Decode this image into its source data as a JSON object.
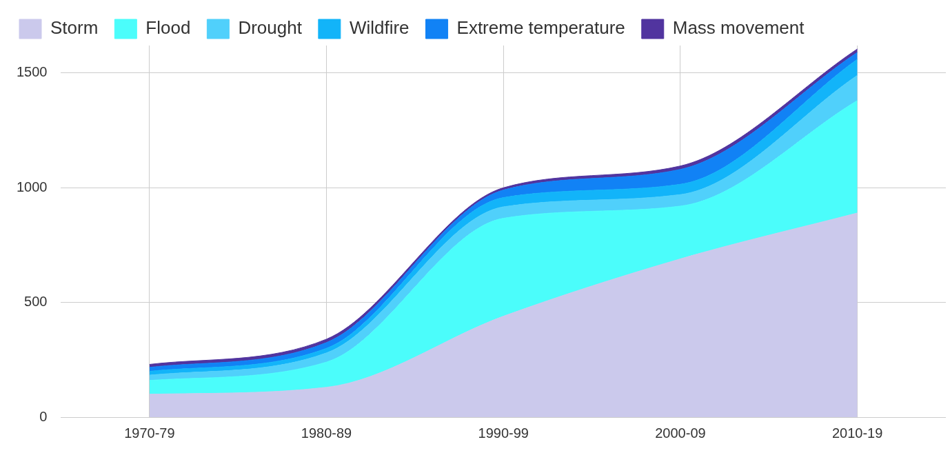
{
  "chart_data": {
    "type": "area",
    "stacked": true,
    "categories": [
      "1970-79",
      "1980-89",
      "1990-99",
      "2000-09",
      "2010-19"
    ],
    "series": [
      {
        "name": "Storm",
        "color": "#cbc9ec",
        "values": [
          100,
          130,
          440,
          690,
          890
        ]
      },
      {
        "name": "Flood",
        "color": "#4bfdfb",
        "values": [
          60,
          110,
          427,
          230,
          490
        ]
      },
      {
        "name": "Drought",
        "color": "#50d0fb",
        "values": [
          23,
          40,
          50,
          50,
          110
        ]
      },
      {
        "name": "Wildfire",
        "color": "#12b4f9",
        "values": [
          17,
          20,
          40,
          45,
          70
        ]
      },
      {
        "name": "Extreme temperature",
        "color": "#1182f5",
        "values": [
          17,
          25,
          33,
          65,
          30
        ]
      },
      {
        "name": "Mass movement",
        "color": "#51349f",
        "values": [
          13,
          15,
          10,
          15,
          15
        ]
      }
    ],
    "ylim": [
      0,
      1620
    ],
    "yticks": [
      0,
      500,
      1000,
      1500
    ],
    "grid": true,
    "legend": "top"
  }
}
